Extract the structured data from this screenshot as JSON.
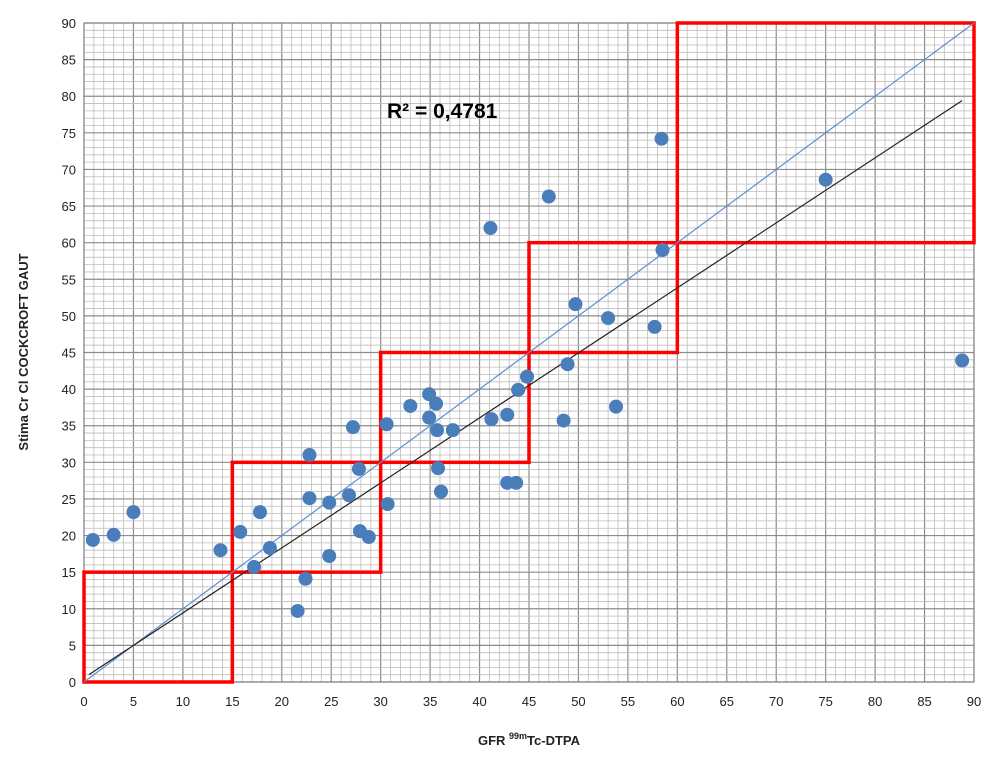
{
  "chart_data": {
    "type": "scatter",
    "title": "",
    "xlabel_prefix": "GFR ",
    "xlabel_sup": "99m",
    "xlabel_suffix": "Tc-DTPA",
    "ylabel": "Stima  Cr Cl COCKCROFT GAUT",
    "annotation": "R² = 0,4781",
    "xlim": [
      0,
      90
    ],
    "ylim": [
      0,
      90
    ],
    "xticks": [
      0,
      5,
      10,
      15,
      20,
      25,
      30,
      35,
      40,
      45,
      50,
      55,
      60,
      65,
      70,
      75,
      80,
      85,
      90
    ],
    "yticks": [
      0,
      5,
      10,
      15,
      20,
      25,
      30,
      35,
      40,
      45,
      50,
      55,
      60,
      65,
      70,
      75,
      80,
      85,
      90
    ],
    "grid": "minor every 1, major every 5",
    "points": [
      [
        0.9,
        19.4
      ],
      [
        3.0,
        20.1
      ],
      [
        5.0,
        23.2
      ],
      [
        13.8,
        18.0
      ],
      [
        15.8,
        20.5
      ],
      [
        17.8,
        23.2
      ],
      [
        17.2,
        15.7
      ],
      [
        18.8,
        18.3
      ],
      [
        21.6,
        9.7
      ],
      [
        22.4,
        14.1
      ],
      [
        22.8,
        25.1
      ],
      [
        22.8,
        31.0
      ],
      [
        24.8,
        17.2
      ],
      [
        24.8,
        24.5
      ],
      [
        26.8,
        25.5
      ],
      [
        27.2,
        34.8
      ],
      [
        27.8,
        29.1
      ],
      [
        27.9,
        20.6
      ],
      [
        28.8,
        19.8
      ],
      [
        30.6,
        35.2
      ],
      [
        30.7,
        24.3
      ],
      [
        33.0,
        37.7
      ],
      [
        34.9,
        39.3
      ],
      [
        34.9,
        36.1
      ],
      [
        35.6,
        38.0
      ],
      [
        35.7,
        34.4
      ],
      [
        35.8,
        29.2
      ],
      [
        36.1,
        26.0
      ],
      [
        37.3,
        34.4
      ],
      [
        41.1,
        62.0
      ],
      [
        41.2,
        35.9
      ],
      [
        42.8,
        36.5
      ],
      [
        42.8,
        27.2
      ],
      [
        43.7,
        27.2
      ],
      [
        43.9,
        39.9
      ],
      [
        44.8,
        41.7
      ],
      [
        47.0,
        66.3
      ],
      [
        48.5,
        35.7
      ],
      [
        48.9,
        43.4
      ],
      [
        49.7,
        51.6
      ],
      [
        53.0,
        49.7
      ],
      [
        53.8,
        37.6
      ],
      [
        57.7,
        48.5
      ],
      [
        58.4,
        74.2
      ],
      [
        58.5,
        59.0
      ],
      [
        75.0,
        68.6
      ],
      [
        88.8,
        43.9
      ]
    ],
    "lines": [
      {
        "name": "identity",
        "from": [
          0,
          0
        ],
        "to": [
          90,
          90
        ],
        "color": "#5b8fd0"
      },
      {
        "name": "regression",
        "from": [
          0.5,
          1.0
        ],
        "to": [
          88.8,
          79.4
        ],
        "color": "#222222"
      }
    ],
    "boxes": [
      [
        0,
        15
      ],
      [
        15,
        30
      ],
      [
        30,
        45
      ],
      [
        45,
        60
      ],
      [
        60,
        90
      ]
    ],
    "colors": {
      "point": "#4a7ebb",
      "box": "#ff0000",
      "minor_grid": "#bdbdbd",
      "major_grid": "#8c8c8c"
    }
  }
}
